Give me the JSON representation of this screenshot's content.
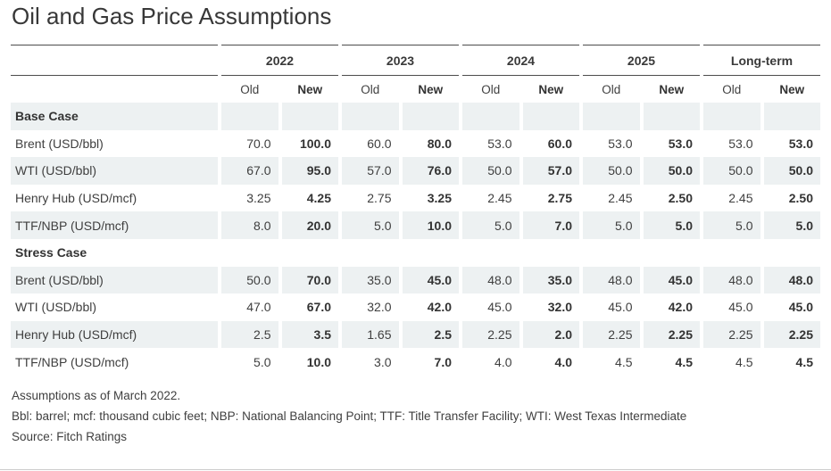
{
  "title": "Oil and Gas Price Assumptions",
  "chart_data": {
    "type": "table",
    "title": "Oil and Gas Price Assumptions",
    "column_groups": [
      "2022",
      "2023",
      "2024",
      "2025",
      "Long-term"
    ],
    "subcolumns": [
      "Old",
      "New"
    ],
    "rows": [
      {
        "type": "section",
        "label": "Base Case"
      },
      {
        "type": "data",
        "label": "Brent (USD/bbl)",
        "values": [
          "70.0",
          "100.0",
          "60.0",
          "80.0",
          "53.0",
          "60.0",
          "53.0",
          "53.0",
          "53.0",
          "53.0"
        ]
      },
      {
        "type": "data",
        "label": "WTI (USD/bbl)",
        "values": [
          "67.0",
          "95.0",
          "57.0",
          "76.0",
          "50.0",
          "57.0",
          "50.0",
          "50.0",
          "50.0",
          "50.0"
        ]
      },
      {
        "type": "data",
        "label": "Henry Hub (USD/mcf)",
        "values": [
          "3.25",
          "4.25",
          "2.75",
          "3.25",
          "2.45",
          "2.75",
          "2.45",
          "2.50",
          "2.45",
          "2.50"
        ]
      },
      {
        "type": "data",
        "label": "TTF/NBP (USD/mcf)",
        "values": [
          "8.0",
          "20.0",
          "5.0",
          "10.0",
          "5.0",
          "7.0",
          "5.0",
          "5.0",
          "5.0",
          "5.0"
        ]
      },
      {
        "type": "section",
        "label": "Stress Case"
      },
      {
        "type": "data",
        "label": "Brent (USD/bbl)",
        "values": [
          "50.0",
          "70.0",
          "35.0",
          "45.0",
          "48.0",
          "35.0",
          "48.0",
          "45.0",
          "48.0",
          "48.0"
        ]
      },
      {
        "type": "data",
        "label": "WTI (USD/bbl)",
        "values": [
          "47.0",
          "67.0",
          "32.0",
          "42.0",
          "45.0",
          "32.0",
          "45.0",
          "42.0",
          "45.0",
          "45.0"
        ]
      },
      {
        "type": "data",
        "label": "Henry Hub (USD/mcf)",
        "values": [
          "2.5",
          "3.5",
          "1.65",
          "2.5",
          "2.25",
          "2.0",
          "2.25",
          "2.25",
          "2.25",
          "2.25"
        ]
      },
      {
        "type": "data",
        "label": "TTF/NBP (USD/mcf)",
        "values": [
          "5.0",
          "10.0",
          "3.0",
          "7.0",
          "4.0",
          "4.0",
          "4.5",
          "4.5",
          "4.5",
          "4.5"
        ]
      }
    ]
  },
  "footnotes": {
    "as_of": "Assumptions as of March 2022.",
    "abbreviations": "Bbl: barrel; mcf: thousand cubic feet; NBP: National Balancing Point; TTF: Title Transfer Facility; WTI: West Texas Intermediate",
    "source": "Source: Fitch Ratings"
  },
  "colors": {
    "shaded_row": "#edf1f2",
    "header_rule": "#4d4d4d",
    "body_text": "#3f3f3f",
    "bottom_divider": "#cccccc"
  }
}
